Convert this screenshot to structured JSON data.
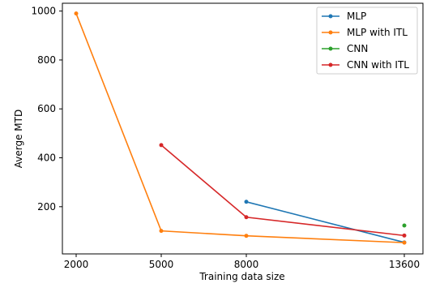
{
  "chart_data": {
    "type": "line",
    "title": "",
    "xlabel": "Training data size",
    "ylabel": "Averge MTD",
    "x_categories": [
      "2000",
      "5000",
      "8000",
      "13600"
    ],
    "yticks": [
      200,
      400,
      600,
      800,
      1000
    ],
    "ylim": [
      7,
      1032
    ],
    "grid": false,
    "legend_position": "top-right",
    "series": [
      {
        "name": "MLP",
        "color": "#1f77b4",
        "points": [
          {
            "x": "8000",
            "y": 220
          },
          {
            "x": "13600",
            "y": 54
          }
        ]
      },
      {
        "name": "MLP with ITL",
        "color": "#ff7f0e",
        "points": [
          {
            "x": "2000",
            "y": 990
          },
          {
            "x": "5000",
            "y": 101
          },
          {
            "x": "8000",
            "y": 81
          },
          {
            "x": "13600",
            "y": 53
          }
        ]
      },
      {
        "name": "CNN",
        "color": "#2ca02c",
        "points": [
          {
            "x": "13600",
            "y": 123
          }
        ]
      },
      {
        "name": "CNN with ITL",
        "color": "#d62728",
        "points": [
          {
            "x": "5000",
            "y": 452
          },
          {
            "x": "8000",
            "y": 157
          },
          {
            "x": "13600",
            "y": 82
          }
        ]
      }
    ]
  }
}
